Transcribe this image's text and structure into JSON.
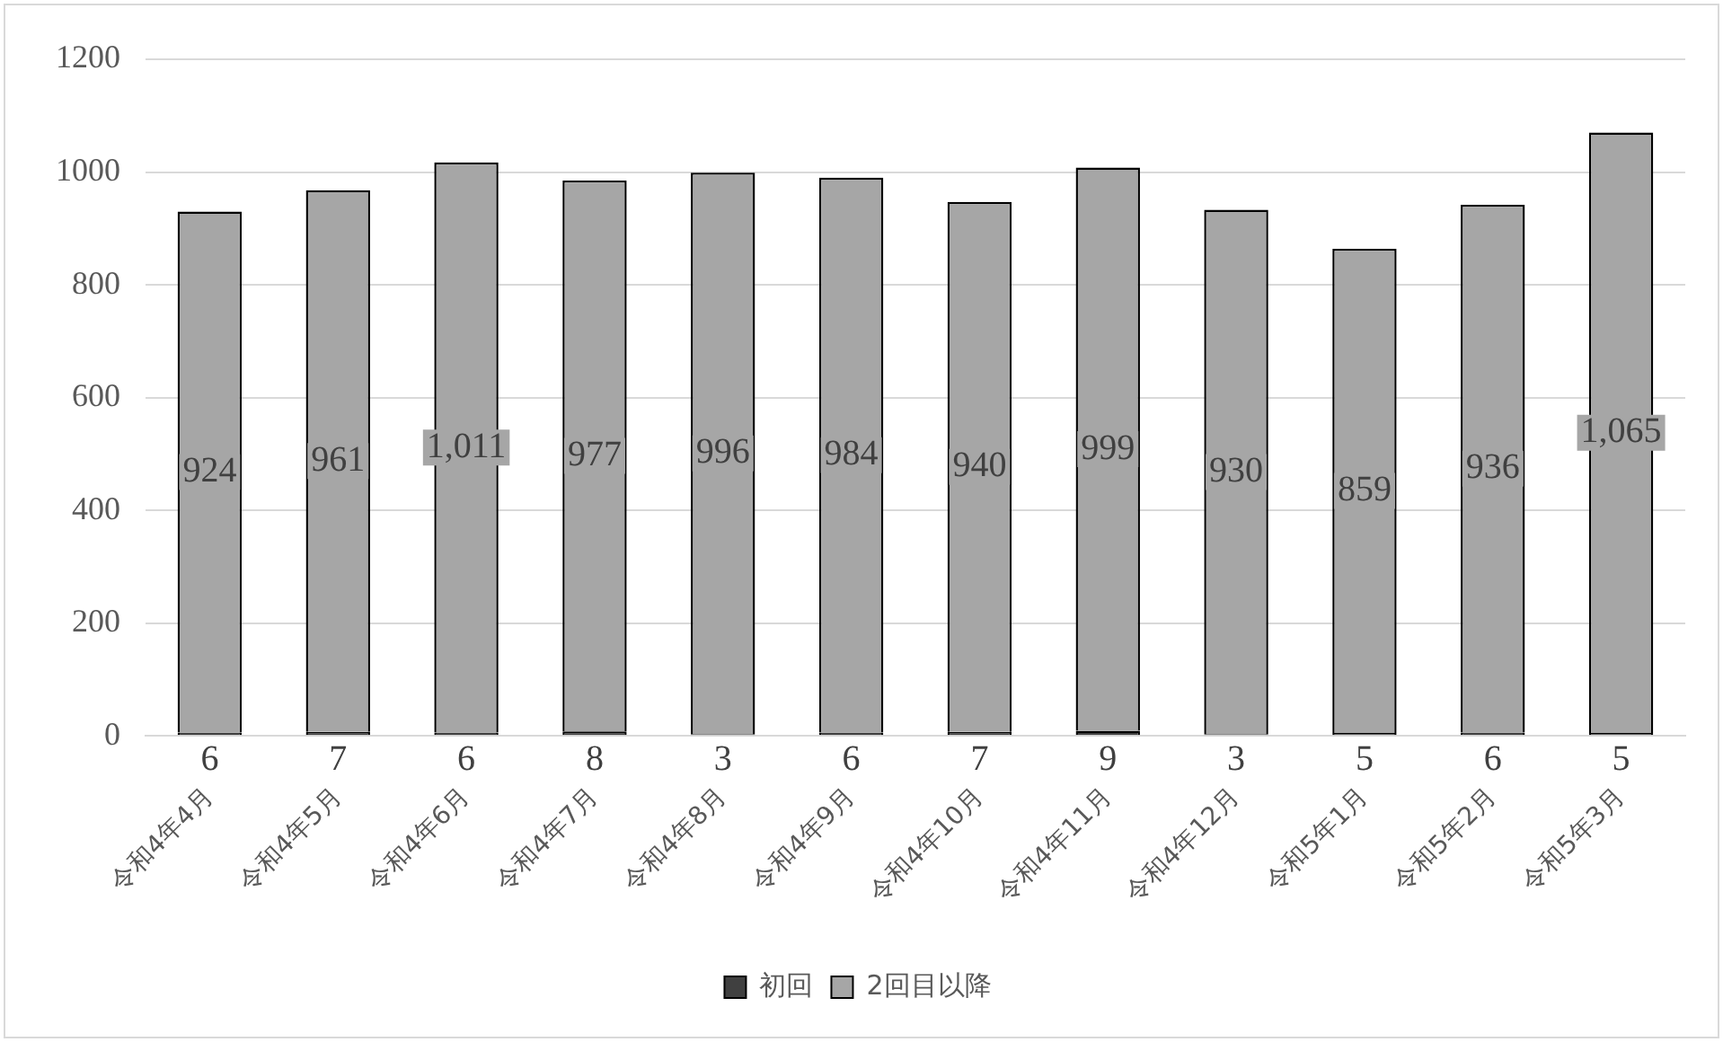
{
  "chart_data": {
    "type": "bar",
    "stacked": true,
    "categories": [
      "令和4年4月",
      "令和4年5月",
      "令和4年6月",
      "令和4年7月",
      "令和4年8月",
      "令和4年9月",
      "令和4年10月",
      "令和4年11月",
      "令和4年12月",
      "令和5年1月",
      "令和5年2月",
      "令和5年3月"
    ],
    "series": [
      {
        "name": "初回",
        "color": "#404040",
        "values": [
          6,
          7,
          6,
          8,
          3,
          6,
          7,
          9,
          3,
          5,
          6,
          5
        ],
        "value_labels": [
          "6",
          "7",
          "6",
          "8",
          "3",
          "6",
          "7",
          "9",
          "3",
          "5",
          "6",
          "5"
        ]
      },
      {
        "name": "2回目以降",
        "color": "#a6a6a6",
        "values": [
          924,
          961,
          1011,
          977,
          996,
          984,
          940,
          999,
          930,
          859,
          936,
          1065
        ],
        "value_labels": [
          "924",
          "961",
          "1,011",
          "977",
          "996",
          "984",
          "940",
          "999",
          "930",
          "859",
          "936",
          "1,065"
        ]
      }
    ],
    "ylim": [
      0,
      1200
    ],
    "yticks": [
      0,
      200,
      400,
      600,
      800,
      1000,
      1200
    ],
    "grid": "y",
    "legend": "bottom"
  }
}
